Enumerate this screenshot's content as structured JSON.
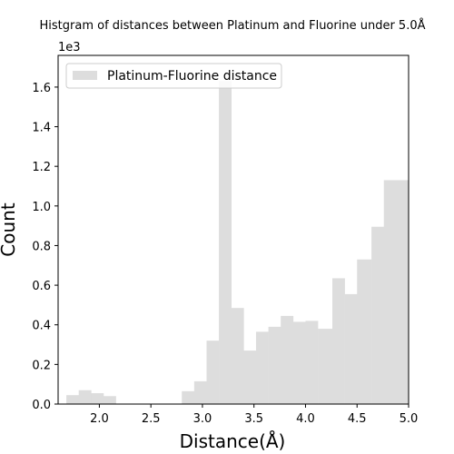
{
  "chart_data": {
    "type": "bar",
    "title": "Histgram of distances between Platinum and Fluorine under 5.0Å",
    "xlabel": "Distance(Å)",
    "ylabel": "Count",
    "y_scale_note": "1e3",
    "legend": "Platinum-Fluorine distance",
    "legend_position": "upper-left",
    "grid": false,
    "bar_color": "#dddddd",
    "xlim": [
      1.6,
      5.0
    ],
    "ylim": [
      0,
      1.76
    ],
    "x_ticks": [
      2.0,
      2.5,
      3.0,
      3.5,
      4.0,
      4.5,
      5.0
    ],
    "x_tick_labels": [
      "2.0",
      "2.5",
      "3.0",
      "3.5",
      "4.0",
      "4.5",
      "5.0"
    ],
    "y_ticks": [
      0.0,
      0.2,
      0.4,
      0.6,
      0.8,
      1.0,
      1.2,
      1.4,
      1.6
    ],
    "y_tick_labels": [
      "0.0",
      "0.2",
      "0.4",
      "0.6",
      "0.8",
      "1.0",
      "1.2",
      "1.4",
      "1.6"
    ],
    "bins": [
      {
        "x0": 1.68,
        "x1": 1.8,
        "value": 0.045
      },
      {
        "x0": 1.8,
        "x1": 1.92,
        "value": 0.07
      },
      {
        "x0": 1.92,
        "x1": 2.04,
        "value": 0.055
      },
      {
        "x0": 2.04,
        "x1": 2.16,
        "value": 0.04
      },
      {
        "x0": 2.8,
        "x1": 2.92,
        "value": 0.065
      },
      {
        "x0": 2.92,
        "x1": 3.04,
        "value": 0.115
      },
      {
        "x0": 3.04,
        "x1": 3.16,
        "value": 0.32
      },
      {
        "x0": 3.16,
        "x1": 3.28,
        "value": 1.63
      },
      {
        "x0": 3.28,
        "x1": 3.4,
        "value": 0.485
      },
      {
        "x0": 3.4,
        "x1": 3.52,
        "value": 0.27
      },
      {
        "x0": 3.52,
        "x1": 3.64,
        "value": 0.365
      },
      {
        "x0": 3.64,
        "x1": 3.76,
        "value": 0.39
      },
      {
        "x0": 3.76,
        "x1": 3.88,
        "value": 0.445
      },
      {
        "x0": 3.88,
        "x1": 4.0,
        "value": 0.415
      },
      {
        "x0": 4.0,
        "x1": 4.12,
        "value": 0.42
      },
      {
        "x0": 4.12,
        "x1": 4.26,
        "value": 0.38
      },
      {
        "x0": 4.26,
        "x1": 4.38,
        "value": 0.635
      },
      {
        "x0": 4.38,
        "x1": 4.5,
        "value": 0.555
      },
      {
        "x0": 4.5,
        "x1": 4.64,
        "value": 0.73
      },
      {
        "x0": 4.64,
        "x1": 4.76,
        "value": 0.895
      },
      {
        "x0": 4.76,
        "x1": 4.88,
        "value": 1.13
      },
      {
        "x0": 4.88,
        "x1": 5.0,
        "value": 1.13
      }
    ]
  }
}
